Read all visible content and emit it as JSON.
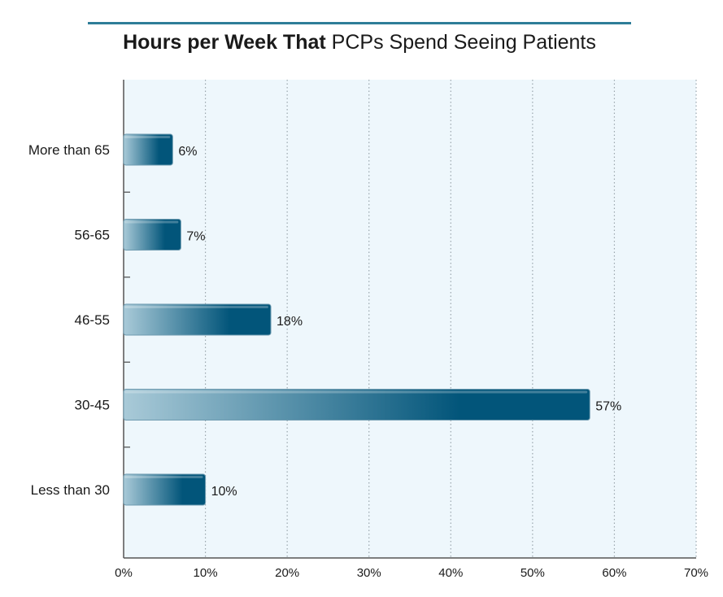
{
  "title": {
    "bold_part": "Hours per Week That",
    "regular_part": " PCPs Spend Seeing Patients"
  },
  "colors": {
    "bar_dark": "#02557a",
    "bar_light": "#a9cad8",
    "plot_bg": "#eef7fc",
    "title_rule": "#2e7d98",
    "gridline": "#9aa6ad"
  },
  "chart_data": {
    "type": "bar",
    "orientation": "horizontal",
    "title": "Hours per Week That PCPs Spend Seeing Patients",
    "categories": [
      "More than 65",
      "56-65",
      "46-55",
      "30-45",
      "Less than 30"
    ],
    "values": [
      6,
      7,
      18,
      57,
      10
    ],
    "data_labels": [
      "6%",
      "7%",
      "18%",
      "57%",
      "10%"
    ],
    "xlim": [
      0,
      70
    ],
    "xticks": [
      0,
      10,
      20,
      30,
      40,
      50,
      60,
      70
    ],
    "xtick_labels": [
      "0%",
      "10%",
      "20%",
      "30%",
      "40%",
      "50%",
      "60%",
      "70%"
    ],
    "xlabel": "",
    "ylabel": "",
    "grid": "vertical dotted",
    "legend": "none"
  }
}
